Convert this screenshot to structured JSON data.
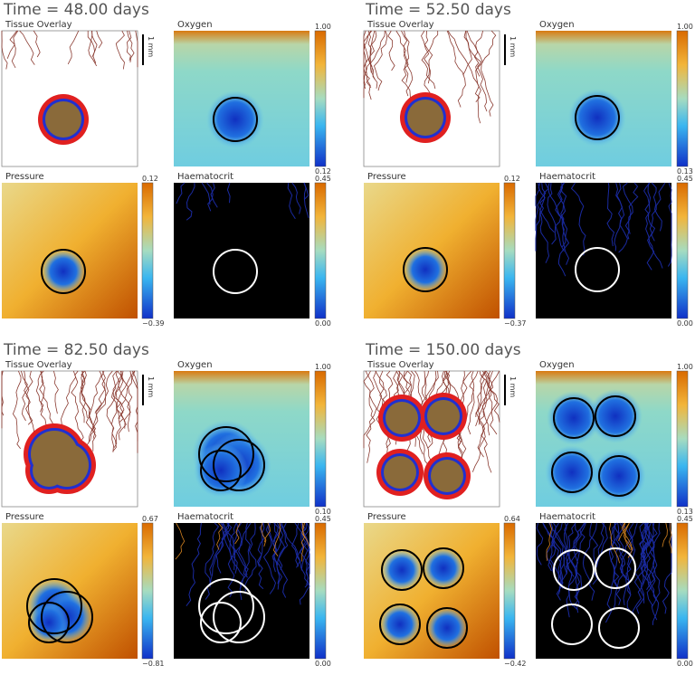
{
  "panels": [
    {
      "title": "Time = 48.00 days",
      "tissue": {
        "label": "Tissue Overlay",
        "scale": "1 mm"
      },
      "oxygen": {
        "label": "Oxygen",
        "max": "1.00",
        "min": "0.12"
      },
      "pressure": {
        "label": "Pressure",
        "max": "0.12",
        "min": "−0.39"
      },
      "haematocrit": {
        "label": "Haematocrit",
        "max": "0.45",
        "min": "0.00"
      }
    },
    {
      "title": "Time = 52.50 days",
      "tissue": {
        "label": "Tissue Overlay",
        "scale": "1 mm"
      },
      "oxygen": {
        "label": "Oxygen",
        "max": "1.00",
        "min": "0.13"
      },
      "pressure": {
        "label": "Pressure",
        "max": "0.12",
        "min": "−0.37"
      },
      "haematocrit": {
        "label": "Haematocrit",
        "max": "0.45",
        "min": "0.00"
      }
    },
    {
      "title": "Time = 82.50 days",
      "tissue": {
        "label": "Tissue Overlay",
        "scale": "1 mm"
      },
      "oxygen": {
        "label": "Oxygen",
        "max": "1.00",
        "min": "0.10"
      },
      "pressure": {
        "label": "Pressure",
        "max": "0.67",
        "min": "−0.81"
      },
      "haematocrit": {
        "label": "Haematocrit",
        "max": "0.45",
        "min": "0.00"
      }
    },
    {
      "title": "Time = 150.00 days",
      "tissue": {
        "label": "Tissue Overlay",
        "scale": "1 mm"
      },
      "oxygen": {
        "label": "Oxygen",
        "max": "1.00",
        "min": "0.13"
      },
      "pressure": {
        "label": "Pressure",
        "max": "0.64",
        "min": "−0.42"
      },
      "haematocrit": {
        "label": "Haematocrit",
        "max": "0.45",
        "min": "0.00"
      }
    }
  ]
}
